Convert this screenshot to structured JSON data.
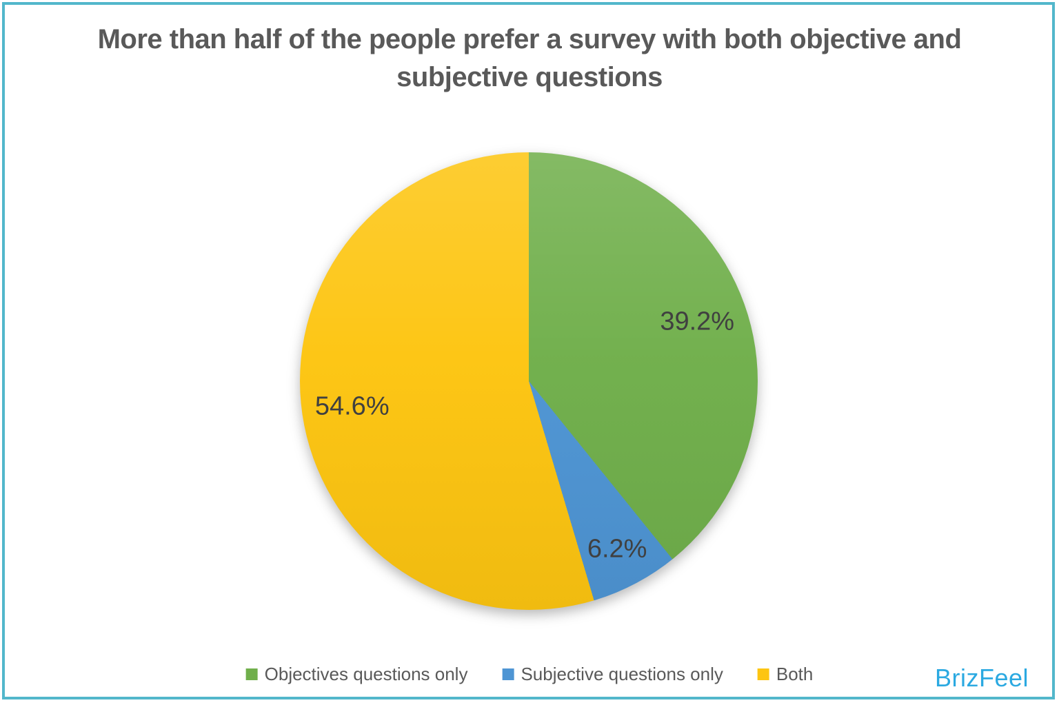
{
  "page": {
    "border_color": "#52b7cb",
    "background_color": "#ffffff"
  },
  "header": {
    "title": "More than half of the people prefer a survey with both objective and subjective questions",
    "title_color": "#595959"
  },
  "chart_data": {
    "type": "pie",
    "title": "More than half of the people prefer a survey with both objective and subjective questions",
    "start_angle_deg": 0,
    "direction": "clockwise",
    "legend_position": "bottom",
    "data_label_color": "#404040",
    "slices": [
      {
        "label": "Objectives questions only",
        "value": 39.2,
        "display": "39.2%",
        "color": "#70AF4B"
      },
      {
        "label": "Subjective questions only",
        "value": 6.2,
        "display": "6.2%",
        "color": "#4E95D4"
      },
      {
        "label": "Both",
        "value": 54.6,
        "display": "54.6%",
        "color": "#FDC511"
      }
    ]
  },
  "brand": {
    "logo_text": "BrizFeel",
    "color": "#2ba9e1"
  }
}
